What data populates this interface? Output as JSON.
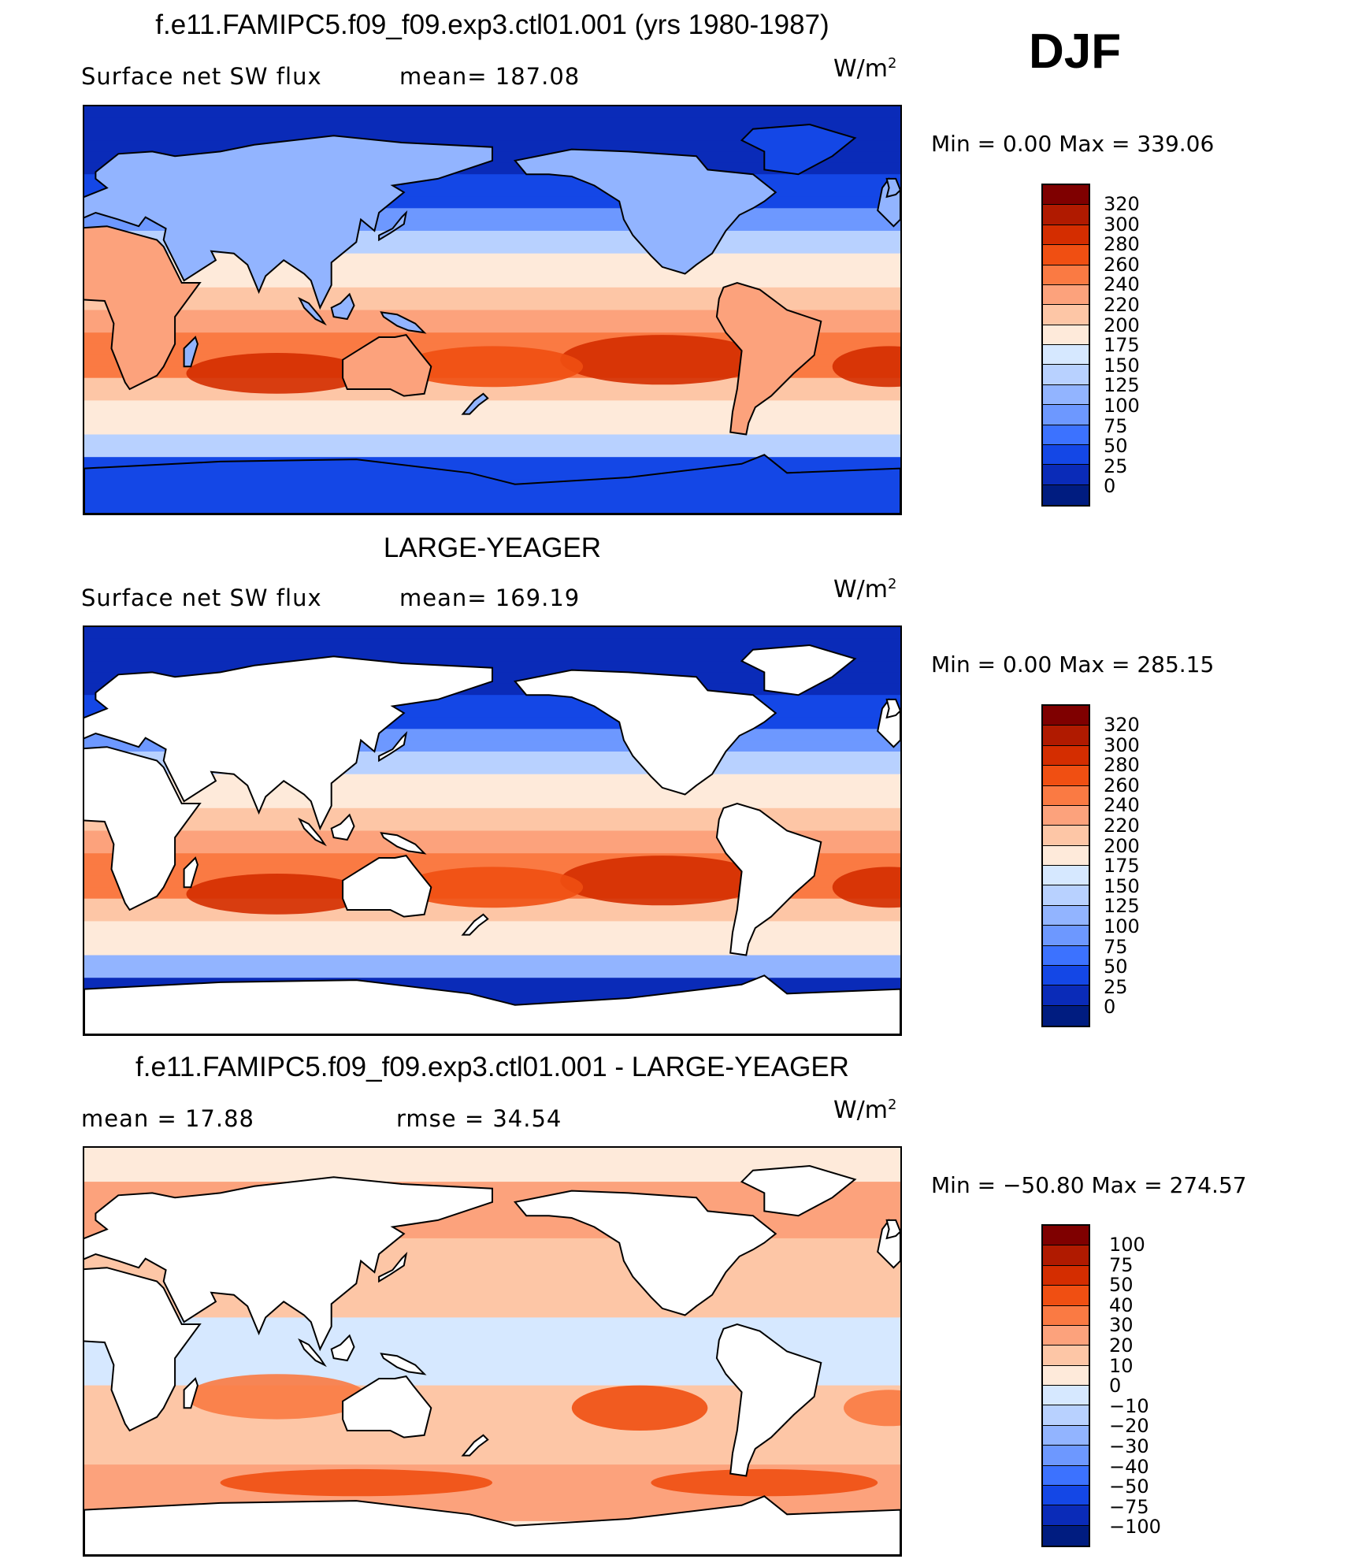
{
  "figure": {
    "season": "DJF",
    "units_base": "W/m",
    "units_exp": "2"
  },
  "panels": [
    {
      "title": "f.e11.FAMIPC5.f09_f09.exp3.ctl01.001 (yrs 1980-1987)",
      "variable": "Surface net SW flux",
      "stat_text": "mean=  187.08",
      "min_max": "Min  =      0.00  Max  =  339.06",
      "colorbar_labels": [
        "320",
        "300",
        "280",
        "260",
        "240",
        "220",
        "200",
        "175",
        "150",
        "125",
        "100",
        "75",
        "50",
        "25",
        "0"
      ],
      "land_masked": false
    },
    {
      "title": "LARGE-YEAGER",
      "variable": "Surface net SW flux",
      "stat_text": "mean=  169.19",
      "min_max": "Min  =      0.00  Max  =  285.15",
      "colorbar_labels": [
        "320",
        "300",
        "280",
        "260",
        "240",
        "220",
        "200",
        "175",
        "150",
        "125",
        "100",
        "75",
        "50",
        "25",
        "0"
      ],
      "land_masked": true
    },
    {
      "title": "f.e11.FAMIPC5.f09_f09.exp3.ctl01.001 - LARGE-YEAGER",
      "variable": "mean  =     17.88",
      "stat_text": "rmse  =     34.54",
      "min_max": "Min  =  −50.80  Max  =  274.57",
      "colorbar_labels": [
        "100",
        "75",
        "50",
        "40",
        "30",
        "20",
        "10",
        "0",
        "−10",
        "−20",
        "−30",
        "−40",
        "−50",
        "−75",
        "−100"
      ],
      "land_masked": true
    }
  ],
  "colors": {
    "scale": [
      "#7f0000",
      "#b01a00",
      "#d42d00",
      "#f04f12",
      "#fa7a43",
      "#fca27c",
      "#fdc6a6",
      "#feeada",
      "#d6e8ff",
      "#b8d1ff",
      "#92b4ff",
      "#6d98ff",
      "#3c72ff",
      "#1447e6",
      "#0a2bb8",
      "#001c80"
    ],
    "land": "#ffffff",
    "coast": "#000000"
  }
}
